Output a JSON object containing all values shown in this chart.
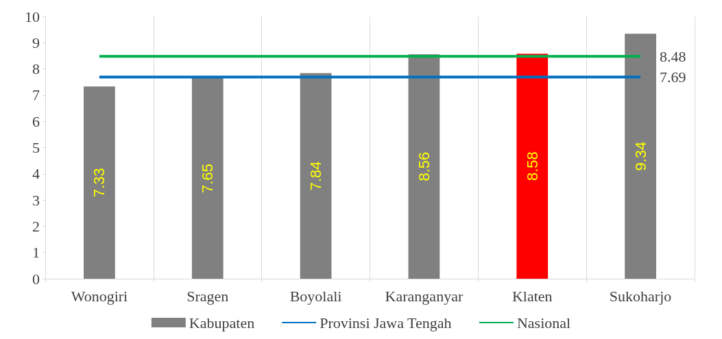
{
  "chart_data": {
    "type": "bar",
    "categories": [
      "Wonogiri",
      "Sragen",
      "Boyolali",
      "Karanganyar",
      "Klaten",
      "Sukoharjo"
    ],
    "series": [
      {
        "name": "Kabupaten",
        "color": "#808080",
        "colors": [
          "#808080",
          "#808080",
          "#808080",
          "#808080",
          "#ff0000",
          "#808080"
        ],
        "values": [
          7.33,
          7.65,
          7.84,
          8.56,
          8.58,
          9.34
        ],
        "value_labels": [
          "7.33",
          "7.65",
          "7.84",
          "8.56",
          "8.58",
          "9.34"
        ]
      },
      {
        "name": "Provinsi Jawa Tengah",
        "type": "line",
        "color": "#0070c0",
        "values": [
          7.69,
          7.69,
          7.69,
          7.69,
          7.69,
          7.69
        ],
        "value_labels": [
          null,
          null,
          null,
          null,
          null,
          "7.69"
        ]
      },
      {
        "name": "Nasional",
        "type": "line",
        "color": "#00b050",
        "values": [
          8.48,
          8.48,
          8.48,
          8.48,
          8.48,
          8.48
        ],
        "value_labels": [
          null,
          null,
          null,
          null,
          null,
          "8.48"
        ]
      }
    ],
    "ylim": [
      0,
      10
    ],
    "yticks": [
      0,
      1,
      2,
      3,
      4,
      5,
      6,
      7,
      8,
      9,
      10
    ],
    "grid": "x",
    "legend": "bottom",
    "marker": "none"
  }
}
